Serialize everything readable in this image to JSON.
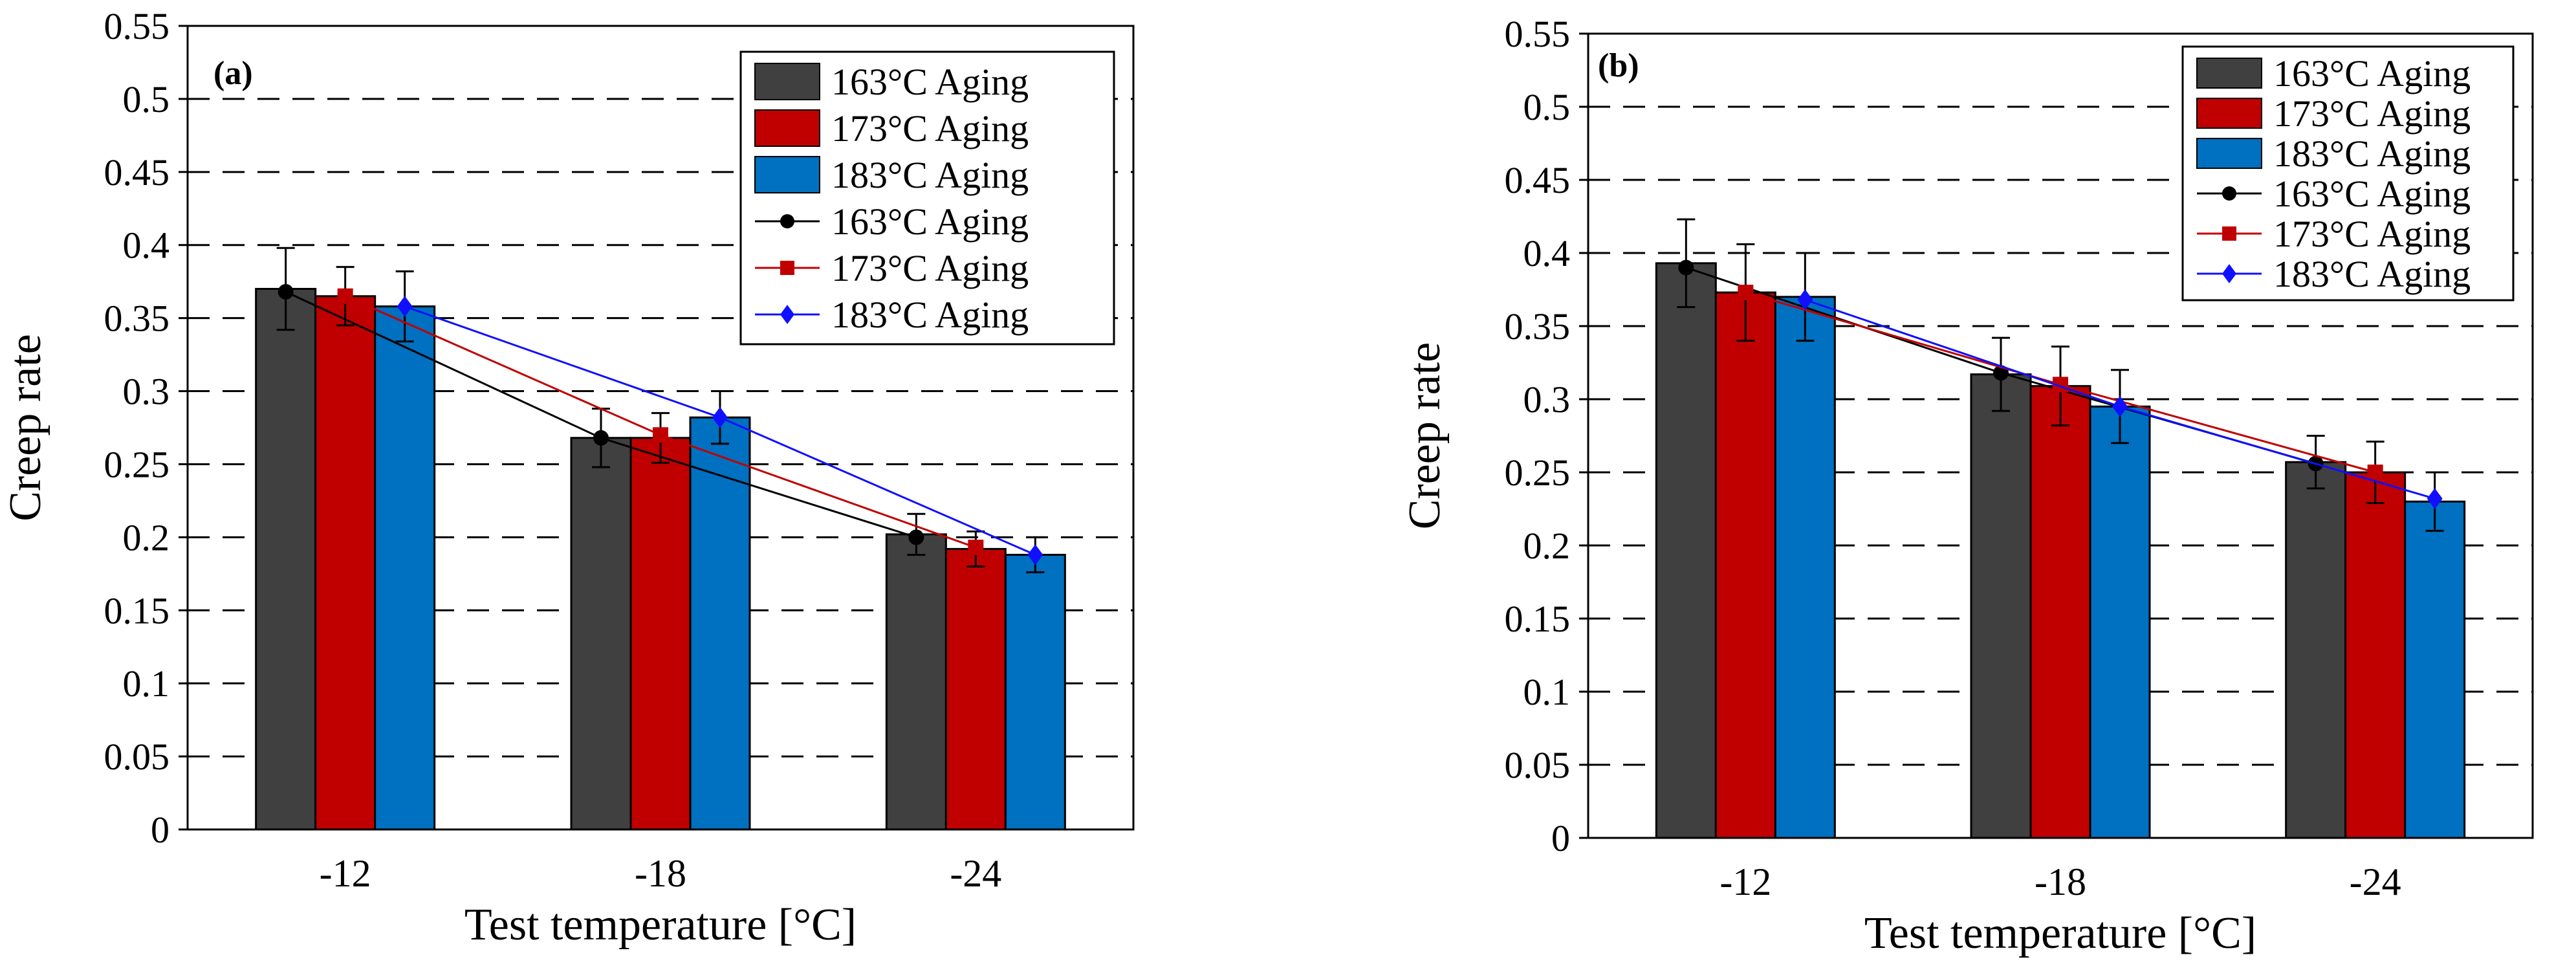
{
  "chart_data": [
    {
      "type": "bar",
      "panel_label": "(a)",
      "title": "",
      "xlabel": "Test temperature [°C]",
      "ylabel": "Creep rate",
      "categories": [
        "-12",
        "-18",
        "-24"
      ],
      "ylim": [
        0,
        0.55
      ],
      "yticks": [
        "0",
        "0.05",
        "0.1",
        "0.15",
        "0.2",
        "0.25",
        "0.3",
        "0.35",
        "0.4",
        "0.45",
        "0.5",
        "0.55"
      ],
      "grid": "dashed horizontal",
      "legend_position": "top-right",
      "series": [
        {
          "name": "163°C Aging",
          "values": [
            0.37,
            0.268,
            0.202
          ],
          "error": [
            0.028,
            0.02,
            0.014
          ],
          "color": "#404040"
        },
        {
          "name": "173°C Aging",
          "values": [
            0.365,
            0.268,
            0.192
          ],
          "error": [
            0.02,
            0.017,
            0.012
          ],
          "color": "#c00000"
        },
        {
          "name": "183°C Aging",
          "values": [
            0.358,
            0.282,
            0.188
          ],
          "error": [
            0.024,
            0.018,
            0.012
          ],
          "color": "#0070c0"
        }
      ],
      "line_series": [
        {
          "name": "163°C Aging",
          "values": [
            0.368,
            0.268,
            0.2
          ],
          "color": "#000000",
          "marker": "circle"
        },
        {
          "name": "173°C Aging",
          "values": [
            0.365,
            0.27,
            0.193
          ],
          "color": "#c00000",
          "marker": "square"
        },
        {
          "name": "183°C Aging",
          "values": [
            0.358,
            0.282,
            0.188
          ],
          "color": "#1010ff",
          "marker": "diamond"
        }
      ]
    },
    {
      "type": "bar",
      "panel_label": "(b)",
      "title": "",
      "xlabel": "Test temperature [°C]",
      "ylabel": "Creep rate",
      "categories": [
        "-12",
        "-18",
        "-24"
      ],
      "ylim": [
        0,
        0.55
      ],
      "yticks": [
        "0",
        "0.05",
        "0.1",
        "0.15",
        "0.2",
        "0.25",
        "0.3",
        "0.35",
        "0.4",
        "0.45",
        "0.5",
        "0.55"
      ],
      "grid": "dashed horizontal",
      "legend_position": "top-right",
      "series": [
        {
          "name": "163°C Aging",
          "values": [
            0.393,
            0.317,
            0.257
          ],
          "error": [
            0.03,
            0.025,
            0.018
          ],
          "color": "#404040"
        },
        {
          "name": "173°C Aging",
          "values": [
            0.373,
            0.309,
            0.25
          ],
          "error": [
            0.033,
            0.027,
            0.021
          ],
          "color": "#c00000"
        },
        {
          "name": "183°C Aging",
          "values": [
            0.37,
            0.295,
            0.23
          ],
          "error": [
            0.03,
            0.025,
            0.02
          ],
          "color": "#0070c0"
        }
      ],
      "line_series": [
        {
          "name": "163°C Aging",
          "values": [
            0.39,
            0.318,
            0.256
          ],
          "color": "#000000",
          "marker": "circle"
        },
        {
          "name": "173°C Aging",
          "values": [
            0.373,
            0.31,
            0.25
          ],
          "color": "#c00000",
          "marker": "square"
        },
        {
          "name": "183°C Aging",
          "values": [
            0.368,
            0.295,
            0.232
          ],
          "color": "#1010ff",
          "marker": "diamond"
        }
      ]
    }
  ]
}
